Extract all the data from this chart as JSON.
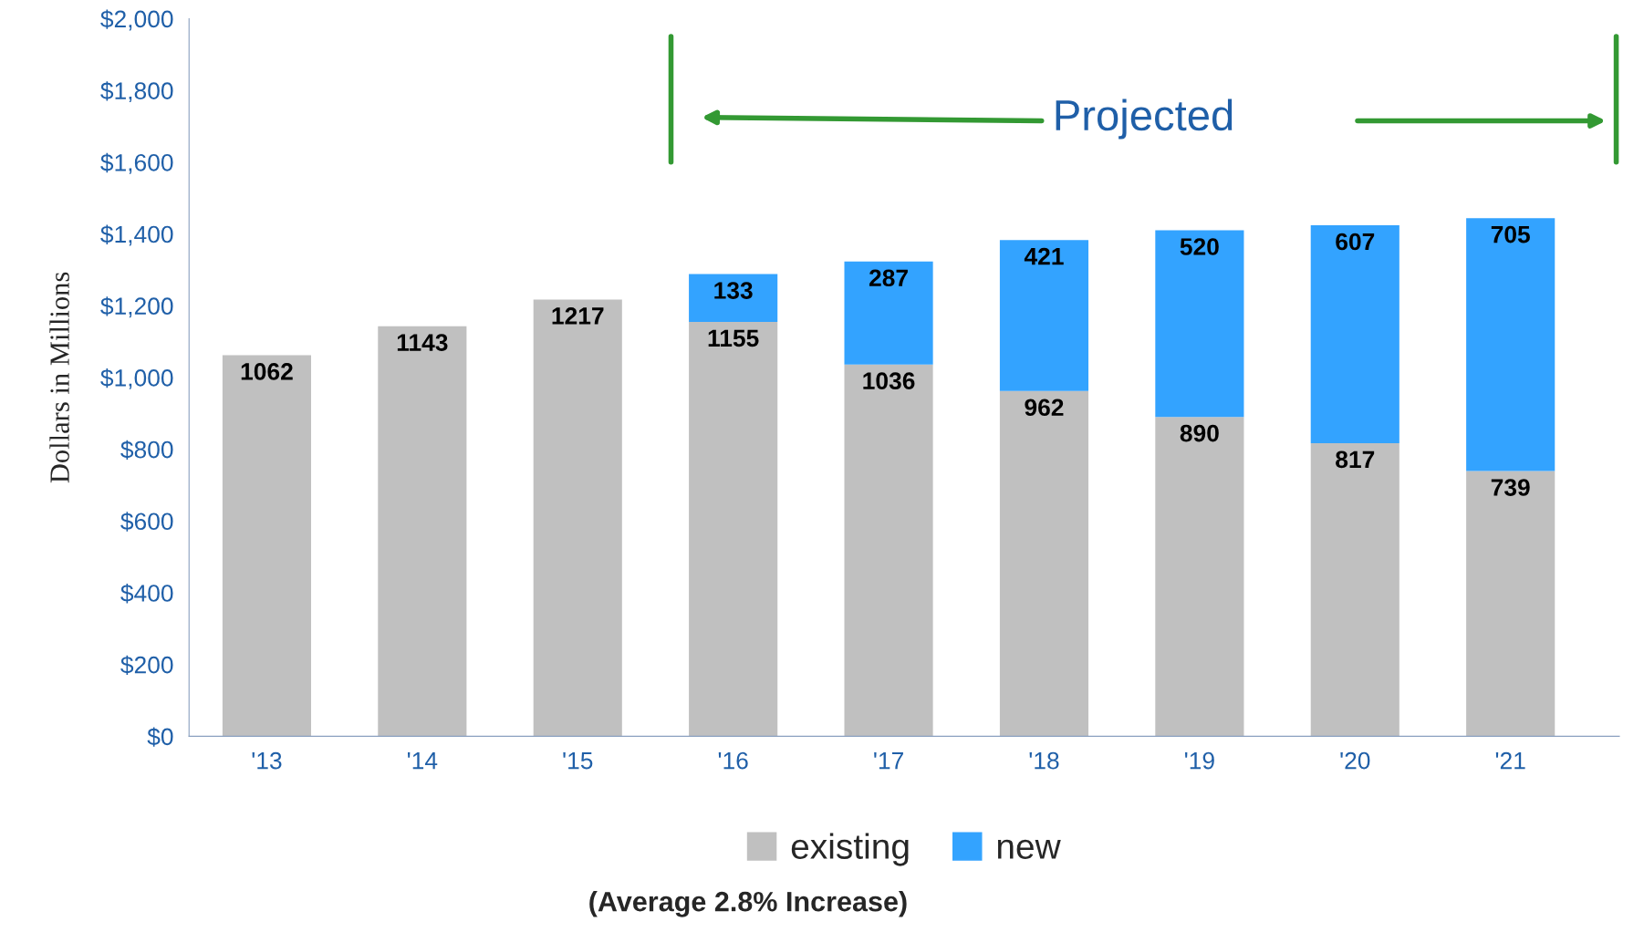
{
  "chart_data": {
    "type": "bar",
    "stacked": true,
    "ylabel": "Dollars in Millions",
    "categories": [
      "'13",
      "'14",
      "'15",
      "'16",
      "'17",
      "'18",
      "'19",
      "'20",
      "'21"
    ],
    "series": [
      {
        "name": "existing",
        "color": "#c0c0c0",
        "values": [
          1062,
          1143,
          1217,
          1155,
          1036,
          962,
          890,
          817,
          739
        ]
      },
      {
        "name": "new",
        "color": "#33a3ff",
        "values": [
          null,
          null,
          null,
          133,
          287,
          421,
          520,
          607,
          705
        ]
      }
    ],
    "data_labels": true,
    "ylim": [
      0,
      2000
    ],
    "yticks": [
      {
        "value": 0,
        "label": "$0"
      },
      {
        "value": 200,
        "label": "$200"
      },
      {
        "value": 400,
        "label": "$400"
      },
      {
        "value": 600,
        "label": "$600"
      },
      {
        "value": 800,
        "label": "$800"
      },
      {
        "value": 1000,
        "label": "$1,000"
      },
      {
        "value": 1200,
        "label": "$1,200"
      },
      {
        "value": 1400,
        "label": "$1,400"
      },
      {
        "value": 1600,
        "label": "$1,600"
      },
      {
        "value": 1800,
        "label": "$1,800"
      },
      {
        "value": 2000,
        "label": "$2,000"
      }
    ],
    "grid": false,
    "legend": "bottom",
    "annotations": [
      "Projected",
      "(Average 2.8% Increase)"
    ]
  }
}
